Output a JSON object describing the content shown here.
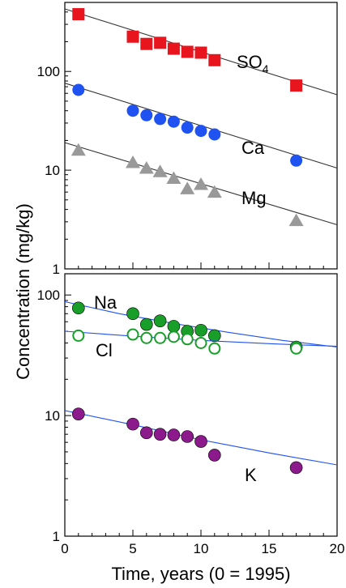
{
  "chart_data": [
    {
      "type": "scatter",
      "panel": "top",
      "yscale": "log",
      "xlim": [
        0,
        20
      ],
      "ylim": [
        1,
        500
      ],
      "yticks": [
        1,
        10,
        100
      ],
      "ytick_labels": [
        "1",
        "10",
        "100"
      ],
      "series": [
        {
          "name": "SO",
          "name_sub": "4",
          "marker": "square",
          "color": "#e8141e",
          "x": [
            1,
            5,
            6,
            7,
            8,
            9,
            10,
            11,
            17
          ],
          "values": [
            380,
            225,
            190,
            195,
            170,
            158,
            155,
            130,
            72
          ],
          "fit": [
            [
              0,
              430
            ],
            [
              20,
              58
            ]
          ]
        },
        {
          "name": "Ca",
          "marker": "circle",
          "color": "#1f52f0",
          "x": [
            1,
            5,
            6,
            7,
            8,
            9,
            10,
            11,
            17
          ],
          "values": [
            65,
            40,
            36,
            33,
            31,
            27,
            25,
            23,
            12.5
          ],
          "fit": [
            [
              0,
              76
            ],
            [
              20,
              10.5
            ]
          ]
        },
        {
          "name": "Mg",
          "marker": "triangle",
          "color": "#999999",
          "x": [
            1,
            5,
            6,
            7,
            8,
            9,
            10,
            11,
            17
          ],
          "values": [
            16,
            12,
            10.5,
            9.7,
            8.3,
            6.5,
            7.2,
            6,
            3.1
          ],
          "fit": [
            [
              0,
              19
            ],
            [
              20,
              2.8
            ]
          ]
        }
      ]
    },
    {
      "type": "scatter",
      "panel": "bottom",
      "yscale": "log",
      "xlim": [
        0,
        20
      ],
      "ylim": [
        1,
        150
      ],
      "yticks": [
        1,
        10,
        100
      ],
      "ytick_labels": [
        "1",
        "10",
        "100"
      ],
      "xticks": [
        0,
        5,
        10,
        15,
        20
      ],
      "xtick_labels": [
        "0",
        "5",
        "10",
        "15",
        "20"
      ],
      "series": [
        {
          "name": "Na",
          "marker": "circle",
          "color": "#1a9e2a",
          "x": [
            1,
            5,
            6,
            7,
            8,
            9,
            10,
            11,
            17
          ],
          "values": [
            78,
            70,
            57,
            61,
            55,
            50,
            51,
            46,
            37
          ],
          "fit": [
            [
              0,
              88
            ],
            [
              4,
              70
            ],
            [
              8,
              58
            ],
            [
              12,
              49
            ],
            [
              16,
              42
            ],
            [
              20,
              37
            ]
          ]
        },
        {
          "name": "Cl",
          "marker": "circle-open",
          "color": "#1a9e2a",
          "x": [
            1,
            5,
            6,
            7,
            8,
            9,
            10,
            11,
            17
          ],
          "values": [
            46,
            47,
            44,
            44,
            45,
            43,
            40,
            36,
            36
          ],
          "fit": [
            [
              0,
              50
            ],
            [
              5,
              45.5
            ],
            [
              10,
              42
            ],
            [
              15,
              39.5
            ],
            [
              20,
              37.5
            ]
          ]
        },
        {
          "name": "K",
          "marker": "circle",
          "color": "#8c1a8c",
          "x": [
            1,
            5,
            6,
            7,
            8,
            9,
            10,
            11,
            17
          ],
          "values": [
            10.3,
            8.5,
            7.2,
            7,
            6.9,
            6.7,
            6.1,
            4.7,
            3.7
          ],
          "fit": [
            [
              0,
              11
            ],
            [
              5,
              8.4
            ],
            [
              10,
              6.3
            ],
            [
              15,
              4.9
            ],
            [
              20,
              3.9
            ]
          ]
        }
      ]
    }
  ],
  "ylabel": "Concentration (mg/kg)",
  "xlabel": "Time, years (0 = 1995)",
  "fit_color": "#1f52f0"
}
